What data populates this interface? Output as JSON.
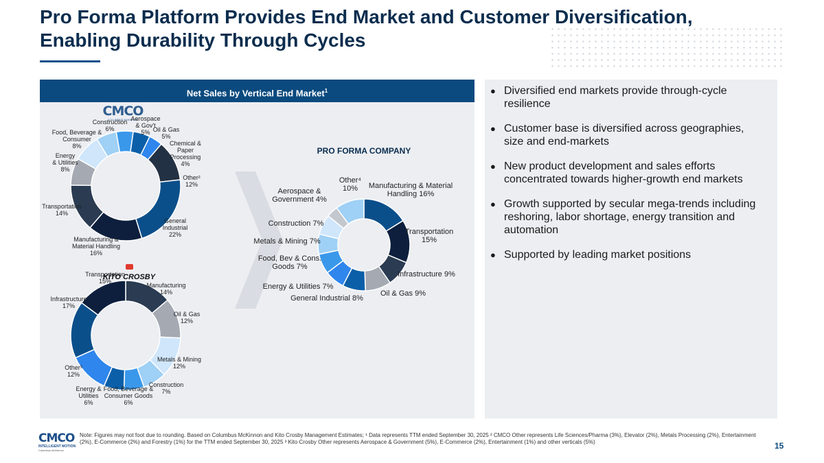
{
  "title": "Pro Forma Platform Provides End Market and Customer Diversification, Enabling Durability Through Cycles",
  "panel_header": "Net Sales by Vertical End Market",
  "panel_header_sup": "1",
  "logos": {
    "cmco": {
      "mark": "CMCO",
      "sub": "COLUMBUS McKINNON"
    },
    "kito": {
      "mark": "KITO CROSBY"
    },
    "bottom": {
      "mark": "CMCO",
      "sub": "INTELLIGENT MOTION",
      "sub2": "Columbus McKinnon"
    }
  },
  "bullets": [
    "Diversified end markets provide through-cycle resilience",
    "Customer base is diversified across geographies, size and end-markets",
    "New product development and sales efforts concentrated towards higher-growth end markets",
    "Growth supported by secular mega-trends including reshoring, labor shortage, energy transition and automation",
    "Supported by leading market positions"
  ],
  "footer_note": "Note: Figures may not foot due to rounding. Based on Columbus McKinnon and Kito Crosby Management Estimates; ¹ Data represents TTM ended September 30, 2025  ² CMCO Other represents Life Sciences/Pharma (3%), Elevator (2%), Metals Processing (2%), Entertainment (2%), E-Commerce (2%) and Forestry (1%) for the TTM ended September 30, 2025 ³ Kito Crosby Other represents Aerospace & Government (5%), E-Commerce (2%), Entertainment (1%) and other verticals (5%)",
  "page_number": "15",
  "chart_data": [
    {
      "type": "donut",
      "name": "CMCO",
      "title": "",
      "slices": [
        {
          "label_lines": [
            "General",
            "Industrial",
            "22%"
          ],
          "value": 22,
          "color": "#0b4f8a"
        },
        {
          "label_lines": [
            "Manufacturing &",
            "Material Handling",
            "16%"
          ],
          "value": 16,
          "color": "#0d1f3d"
        },
        {
          "label_lines": [
            "Transportation",
            "14%"
          ],
          "value": 14,
          "color": "#2a3b52"
        },
        {
          "label_lines": [
            "Energy",
            "& Utilities",
            "8%"
          ],
          "value": 8,
          "color": "#a4a9b2"
        },
        {
          "label_lines": [
            "Food, Beverage &",
            "Consumer",
            "8%"
          ],
          "value": 8,
          "color": "#cfe6fb"
        },
        {
          "label_lines": [
            "Construction",
            "6%"
          ],
          "value": 6,
          "color": "#9fd0f5"
        },
        {
          "label_lines": [
            "Aerospace",
            "& Gov't",
            "5%"
          ],
          "value": 5,
          "color": "#3a98ea"
        },
        {
          "label_lines": [
            "Oil & Gas",
            "5%"
          ],
          "value": 5,
          "color": "#0b5fa8"
        },
        {
          "label_lines": [
            "Chemical &",
            "Paper",
            "Processing",
            "4%"
          ],
          "value": 4,
          "color": "#2f86ec"
        },
        {
          "label_lines": [
            "Other²",
            "12%"
          ],
          "value": 12,
          "color": "#233144"
        }
      ],
      "slice_order_clockwise_from_top": [
        "Aerospace",
        "Oil & Gas",
        "Chemical & Paper Processing",
        "Other",
        "General Industrial",
        "Manufacturing & Material Handling",
        "Transportation",
        "Energy & Utilities",
        "Food, Beverage & Consumer",
        "Construction"
      ]
    },
    {
      "type": "donut",
      "name": "Kito Crosby",
      "title": "",
      "slices": [
        {
          "label_lines": [
            "Manufacturing",
            "14%"
          ],
          "value": 14,
          "color": "#2a3b52"
        },
        {
          "label_lines": [
            "Oil & Gas",
            "12%"
          ],
          "value": 12,
          "color": "#a4a9b2"
        },
        {
          "label_lines": [
            "Metals & Mining",
            "12%"
          ],
          "value": 12,
          "color": "#cfe6fb"
        },
        {
          "label_lines": [
            "Construction",
            "7%"
          ],
          "value": 7,
          "color": "#9fd0f5"
        },
        {
          "label_lines": [
            "Food, Beverage &",
            "Consumer Goods",
            "6%"
          ],
          "value": 6,
          "color": "#3a98ea"
        },
        {
          "label_lines": [
            "Energy &",
            "Utilities",
            "6%"
          ],
          "value": 6,
          "color": "#0b5fa8"
        },
        {
          "label_lines": [
            "Other³",
            "12%"
          ],
          "value": 12,
          "color": "#2f86ec"
        },
        {
          "label_lines": [
            "Infrastructure",
            "17%"
          ],
          "value": 17,
          "color": "#0b4f8a"
        },
        {
          "label_lines": [
            "Transportation",
            "15%"
          ],
          "value": 15,
          "color": "#0d1f3d"
        }
      ]
    },
    {
      "type": "donut",
      "name": "Pro Forma Company",
      "title": "PRO FORMA COMPANY",
      "slices": [
        {
          "label_lines": [
            "Manufacturing & Material",
            "Handling 16%"
          ],
          "value": 16,
          "color": "#0b4f8a"
        },
        {
          "label_lines": [
            "Transportation",
            "15%"
          ],
          "value": 15,
          "color": "#0d1f3d"
        },
        {
          "label_lines": [
            "Infrastructure 9%"
          ],
          "value": 9,
          "color": "#2a3b52"
        },
        {
          "label_lines": [
            "Oil & Gas 9%"
          ],
          "value": 9,
          "color": "#a4a9b2"
        },
        {
          "label_lines": [
            "General Industrial 8%"
          ],
          "value": 8,
          "color": "#0b5fa8"
        },
        {
          "label_lines": [
            "Energy & Utilities 7%"
          ],
          "value": 7,
          "color": "#2f86ec"
        },
        {
          "label_lines": [
            "Food, Bev & Cons.",
            "Goods 7%"
          ],
          "value": 7,
          "color": "#3a98ea"
        },
        {
          "label_lines": [
            "Metals & Mining 7%"
          ],
          "value": 7,
          "color": "#9fd0f5"
        },
        {
          "label_lines": [
            "Construction 7%"
          ],
          "value": 7,
          "color": "#cfe6fb"
        },
        {
          "label_lines": [
            "Aerospace &",
            "Government 4%"
          ],
          "value": 4,
          "color": "#c3c7ce"
        },
        {
          "label_lines": [
            "Other⁴",
            "10%"
          ],
          "value": 10,
          "color": "#9fd0f5"
        }
      ]
    }
  ]
}
